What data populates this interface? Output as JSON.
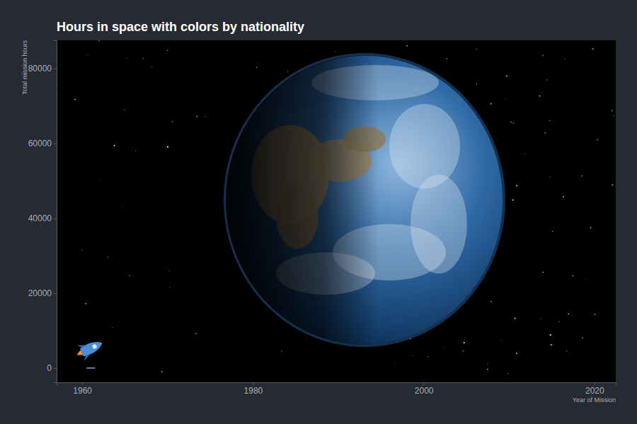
{
  "chart_data": {
    "type": "scatter",
    "title": "Hours in space with colors by nationality",
    "x_label": "Year of Mission",
    "y_label": "Total mission hours",
    "x": [
      1961
    ],
    "series": [
      {
        "color": "#8fa6c4",
        "values": [
          2
        ],
        "marker": "dash"
      }
    ],
    "xlim": [
      1957,
      2022.5
    ],
    "xticks": [
      1960,
      1980,
      2000,
      2020
    ],
    "ylim": [
      -3800,
      87500
    ],
    "yticks": [
      0,
      20000,
      40000,
      60000,
      80000
    ],
    "grid": false
  }
}
